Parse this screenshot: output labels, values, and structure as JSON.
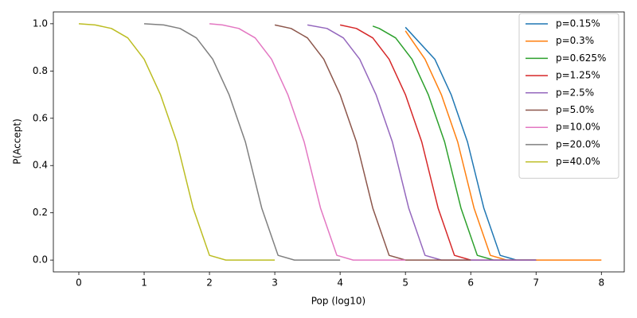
{
  "chart_data": {
    "type": "line",
    "xlabel": "Pop (log10)",
    "ylabel": "P(Accept)",
    "xlim": [
      -0.39,
      8.35
    ],
    "ylim": [
      -0.05,
      1.05
    ],
    "xticks": [
      0,
      1,
      2,
      3,
      4,
      5,
      6,
      7,
      8
    ],
    "yticks": [
      {
        "value": 0,
        "label": "0.0"
      },
      {
        "value": 0.2,
        "label": "0.2"
      },
      {
        "value": 0.4,
        "label": "0.4"
      },
      {
        "value": 0.6,
        "label": "0.6"
      },
      {
        "value": 0.8,
        "label": "0.8"
      },
      {
        "value": 1,
        "label": "1.0"
      }
    ],
    "legend": "upper right",
    "series": [
      {
        "name": "p=0.15%",
        "color": "#1f77b4",
        "x": [
          5,
          5.45,
          5.7,
          5.95,
          6.2,
          6.45,
          6.7,
          7
        ],
        "values": [
          0.985,
          0.85,
          0.7,
          0.5,
          0.22,
          0.02,
          0,
          0
        ]
      },
      {
        "name": "p=0.3%",
        "color": "#ff7f0e",
        "x": [
          5,
          5.3,
          5.55,
          5.8,
          6.05,
          6.3,
          6.55,
          8
        ],
        "values": [
          0.97,
          0.85,
          0.7,
          0.5,
          0.22,
          0.02,
          0,
          0
        ]
      },
      {
        "name": "p=0.625%",
        "color": "#2ca02c",
        "x": [
          4.5,
          4.6,
          4.85,
          5.1,
          5.35,
          5.6,
          5.85,
          6.1,
          6.35,
          7
        ],
        "values": [
          0.99,
          0.98,
          0.94,
          0.85,
          0.7,
          0.5,
          0.22,
          0.02,
          0,
          0
        ]
      },
      {
        "name": "p=1.25%",
        "color": "#d62728",
        "x": [
          4,
          4.25,
          4.5,
          4.75,
          5,
          5.25,
          5.5,
          5.75,
          6,
          7
        ],
        "values": [
          0.995,
          0.98,
          0.94,
          0.85,
          0.7,
          0.5,
          0.22,
          0.02,
          0,
          0
        ]
      },
      {
        "name": "p=2.5%",
        "color": "#9467bd",
        "x": [
          3.5,
          3.8,
          4.05,
          4.3,
          4.55,
          4.8,
          5.05,
          5.3,
          5.55,
          7
        ],
        "values": [
          0.995,
          0.98,
          0.94,
          0.85,
          0.7,
          0.5,
          0.22,
          0.02,
          0,
          0
        ]
      },
      {
        "name": "p=5.0%",
        "color": "#8c564b",
        "x": [
          3,
          3.25,
          3.5,
          3.75,
          4,
          4.25,
          4.5,
          4.75,
          5,
          6
        ],
        "values": [
          0.995,
          0.98,
          0.94,
          0.85,
          0.7,
          0.5,
          0.22,
          0.02,
          0,
          0
        ]
      },
      {
        "name": "p=10.0%",
        "color": "#e377c2",
        "x": [
          2,
          2.2,
          2.45,
          2.7,
          2.95,
          3.2,
          3.45,
          3.7,
          3.95,
          4.2,
          5
        ],
        "values": [
          1,
          0.995,
          0.98,
          0.94,
          0.85,
          0.7,
          0.5,
          0.22,
          0.02,
          0,
          0
        ]
      },
      {
        "name": "p=20.0%",
        "color": "#7f7f7f",
        "x": [
          1,
          1.3,
          1.55,
          1.8,
          2.05,
          2.3,
          2.55,
          2.8,
          3.05,
          3.3,
          4
        ],
        "values": [
          1,
          0.995,
          0.98,
          0.94,
          0.85,
          0.7,
          0.5,
          0.22,
          0.02,
          0,
          0
        ]
      },
      {
        "name": "p=40.0%",
        "color": "#bcbd22",
        "x": [
          0,
          0.25,
          0.5,
          0.75,
          1,
          1.25,
          1.5,
          1.75,
          2,
          2.25,
          3
        ],
        "values": [
          1,
          0.995,
          0.98,
          0.94,
          0.85,
          0.7,
          0.5,
          0.22,
          0.02,
          0,
          0
        ]
      }
    ]
  }
}
